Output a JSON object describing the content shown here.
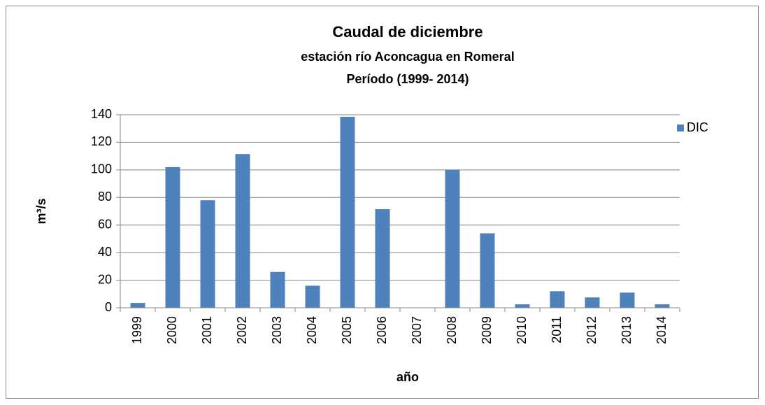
{
  "chart_data": {
    "type": "bar",
    "title": [
      "Caudal de diciembre",
      "estación río Aconcagua en Romeral",
      "Período (1999- 2014)"
    ],
    "xlabel": "año",
    "ylabel": "m³/s",
    "categories": [
      "1999",
      "2000",
      "2001",
      "2002",
      "2003",
      "2004",
      "2005",
      "2006",
      "2007",
      "2008",
      "2009",
      "2010",
      "2011",
      "2012",
      "2013",
      "2014"
    ],
    "series": [
      {
        "name": "DIC",
        "color": "#4f81bd",
        "values": [
          3.5,
          102,
          78,
          111.5,
          26,
          16,
          138.5,
          71.5,
          0,
          100,
          54,
          2.5,
          12,
          7.5,
          11,
          2.5
        ]
      }
    ],
    "ylim": [
      0,
      140
    ],
    "yticks": [
      0,
      20,
      40,
      60,
      80,
      100,
      120,
      140
    ],
    "grid": true,
    "legend": "right"
  }
}
